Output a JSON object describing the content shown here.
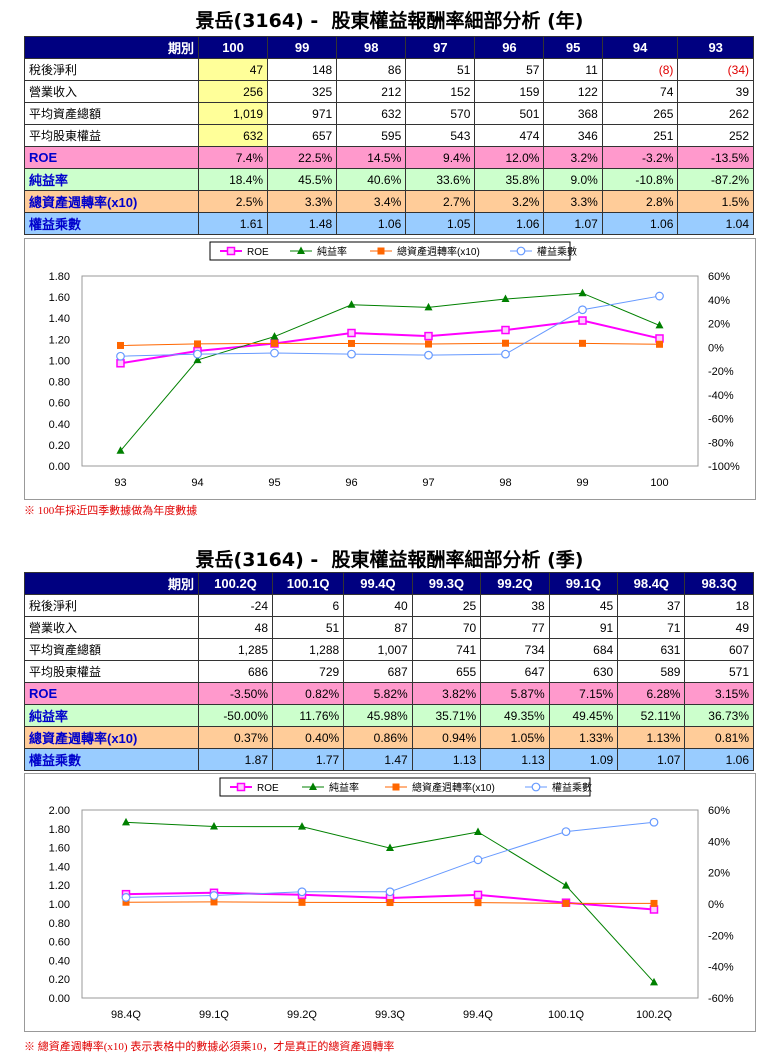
{
  "annual": {
    "title": "景岳(3164) -  股東權益報酬率細部分析 (年)",
    "header_label": "期別",
    "periods": [
      "100",
      "99",
      "98",
      "97",
      "96",
      "95",
      "94",
      "93"
    ],
    "rows": [
      {
        "label": "稅後淨利",
        "values": [
          "47",
          "148",
          "86",
          "51",
          "57",
          "11",
          "(8)",
          "(34)"
        ]
      },
      {
        "label": "營業收入",
        "values": [
          "256",
          "325",
          "212",
          "152",
          "159",
          "122",
          "74",
          "39"
        ]
      },
      {
        "label": "平均資產總額",
        "values": [
          "1,019",
          "971",
          "632",
          "570",
          "501",
          "368",
          "265",
          "262"
        ]
      },
      {
        "label": "平均股東權益",
        "values": [
          "632",
          "657",
          "595",
          "543",
          "474",
          "346",
          "251",
          "252"
        ]
      },
      {
        "label": "ROE",
        "values": [
          "7.4%",
          "22.5%",
          "14.5%",
          "9.4%",
          "12.0%",
          "3.2%",
          "-3.2%",
          "-13.5%"
        ]
      },
      {
        "label": "純益率",
        "values": [
          "18.4%",
          "45.5%",
          "40.6%",
          "33.6%",
          "35.8%",
          "9.0%",
          "-10.8%",
          "-87.2%"
        ]
      },
      {
        "label": "總資產週轉率(x10)",
        "values": [
          "2.5%",
          "3.3%",
          "3.4%",
          "2.7%",
          "3.2%",
          "3.3%",
          "2.8%",
          "1.5%"
        ]
      },
      {
        "label": "權益乘數",
        "values": [
          "1.61",
          "1.48",
          "1.06",
          "1.05",
          "1.06",
          "1.07",
          "1.06",
          "1.04"
        ]
      }
    ],
    "note": "※ 100年採近四季數據做為年度數據"
  },
  "quarterly": {
    "title": "景岳(3164) -  股東權益報酬率細部分析 (季)",
    "header_label": "期別",
    "periods": [
      "100.2Q",
      "100.1Q",
      "99.4Q",
      "99.3Q",
      "99.2Q",
      "99.1Q",
      "98.4Q",
      "98.3Q"
    ],
    "rows": [
      {
        "label": "稅後淨利",
        "values": [
          "-24",
          "6",
          "40",
          "25",
          "38",
          "45",
          "37",
          "18"
        ]
      },
      {
        "label": "營業收入",
        "values": [
          "48",
          "51",
          "87",
          "70",
          "77",
          "91",
          "71",
          "49"
        ]
      },
      {
        "label": "平均資產總額",
        "values": [
          "1,285",
          "1,288",
          "1,007",
          "741",
          "734",
          "684",
          "631",
          "607"
        ]
      },
      {
        "label": "平均股東權益",
        "values": [
          "686",
          "729",
          "687",
          "655",
          "647",
          "630",
          "589",
          "571"
        ]
      },
      {
        "label": "ROE",
        "values": [
          "-3.50%",
          "0.82%",
          "5.82%",
          "3.82%",
          "5.87%",
          "7.15%",
          "6.28%",
          "3.15%"
        ]
      },
      {
        "label": "純益率",
        "values": [
          "-50.00%",
          "11.76%",
          "45.98%",
          "35.71%",
          "49.35%",
          "49.45%",
          "52.11%",
          "36.73%"
        ]
      },
      {
        "label": "總資產週轉率(x10)",
        "values": [
          "0.37%",
          "0.40%",
          "0.86%",
          "0.94%",
          "1.05%",
          "1.33%",
          "1.13%",
          "0.81%"
        ]
      },
      {
        "label": "權益乘數",
        "values": [
          "1.87",
          "1.77",
          "1.47",
          "1.13",
          "1.13",
          "1.09",
          "1.07",
          "1.06"
        ]
      }
    ],
    "note": "※ 總資產週轉率(x10) 表示表格中的數據必須乘10，才是真正的總資產週轉率"
  },
  "colors": {
    "roe": "#ff00ff",
    "np": "#008000",
    "at": "#ff6600",
    "em": "#6699ff"
  },
  "chart_data": [
    {
      "type": "line",
      "categories": [
        "93",
        "94",
        "95",
        "96",
        "97",
        "98",
        "99",
        "100"
      ],
      "legend": [
        "ROE",
        "純益率",
        "總資產週轉率(x10)",
        "權益乘數"
      ],
      "legend_position": "top",
      "y_left": {
        "ylim": [
          0,
          1.8
        ],
        "ticks": [
          "0.00",
          "0.20",
          "0.40",
          "0.60",
          "0.80",
          "1.00",
          "1.20",
          "1.40",
          "1.60",
          "1.80"
        ]
      },
      "y_right": {
        "ylim": [
          -100,
          60
        ],
        "ticks": [
          "-100%",
          "-80%",
          "-60%",
          "-40%",
          "-20%",
          "0%",
          "20%",
          "40%",
          "60%"
        ]
      },
      "series": [
        {
          "name": "ROE",
          "axis": "right",
          "values": [
            -13.5,
            -3.2,
            3.2,
            12.0,
            9.4,
            14.5,
            22.5,
            7.4
          ]
        },
        {
          "name": "純益率",
          "axis": "right",
          "values": [
            -87.2,
            -10.8,
            9.0,
            35.8,
            33.6,
            40.6,
            45.5,
            18.4
          ]
        },
        {
          "name": "總資產週轉率(x10)",
          "axis": "right",
          "values": [
            1.5,
            2.8,
            3.3,
            3.2,
            2.7,
            3.4,
            3.3,
            2.5
          ]
        },
        {
          "name": "權益乘數",
          "axis": "left",
          "values": [
            1.04,
            1.06,
            1.07,
            1.06,
            1.05,
            1.06,
            1.48,
            1.61
          ]
        }
      ]
    },
    {
      "type": "line",
      "categories": [
        "98.4Q",
        "99.1Q",
        "99.2Q",
        "99.3Q",
        "99.4Q",
        "100.1Q",
        "100.2Q"
      ],
      "legend": [
        "ROE",
        "純益率",
        "總資產週轉率(x10)",
        "權益乘數"
      ],
      "legend_position": "top",
      "y_left": {
        "ylim": [
          0,
          2.0
        ],
        "ticks": [
          "0.00",
          "0.20",
          "0.40",
          "0.60",
          "0.80",
          "1.00",
          "1.20",
          "1.40",
          "1.60",
          "1.80",
          "2.00"
        ]
      },
      "y_right": {
        "ylim": [
          -60,
          60
        ],
        "ticks": [
          "-60%",
          "-40%",
          "-20%",
          "0%",
          "20%",
          "40%",
          "60%"
        ]
      },
      "series": [
        {
          "name": "ROE",
          "axis": "right",
          "values": [
            6.28,
            7.15,
            5.87,
            3.82,
            5.82,
            0.82,
            -3.5
          ]
        },
        {
          "name": "純益率",
          "axis": "right",
          "values": [
            52.11,
            49.45,
            49.35,
            35.71,
            45.98,
            11.76,
            -50.0
          ]
        },
        {
          "name": "總資產週轉率(x10)",
          "axis": "right",
          "values": [
            1.13,
            1.33,
            1.05,
            0.94,
            0.86,
            0.4,
            0.37
          ]
        },
        {
          "name": "權益乘數",
          "axis": "left",
          "values": [
            1.07,
            1.09,
            1.13,
            1.13,
            1.47,
            1.77,
            1.87
          ]
        }
      ]
    }
  ]
}
